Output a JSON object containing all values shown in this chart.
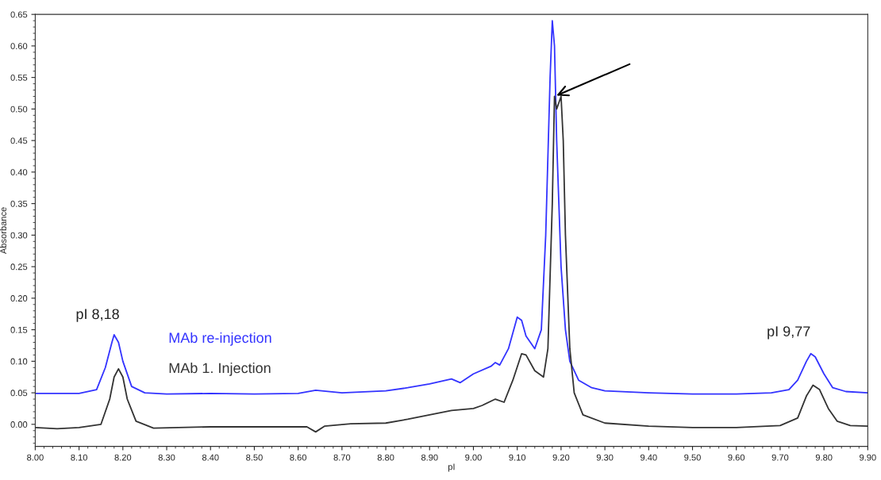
{
  "chart_data": {
    "type": "line",
    "xlabel": "pI",
    "ylabel": "Absorbance",
    "xlim": [
      8.0,
      9.9
    ],
    "ylim": [
      -0.035,
      0.65
    ],
    "xticks": [
      {
        "value": 8.0,
        "label": "8.00"
      },
      {
        "value": 8.1,
        "label": "8.10"
      },
      {
        "value": 8.2,
        "label": "8.20"
      },
      {
        "value": 8.3,
        "label": "8.30"
      },
      {
        "value": 8.4,
        "label": "8.40"
      },
      {
        "value": 8.5,
        "label": "8.50"
      },
      {
        "value": 8.6,
        "label": "8.60"
      },
      {
        "value": 8.7,
        "label": "8.70"
      },
      {
        "value": 8.8,
        "label": "8.80"
      },
      {
        "value": 8.9,
        "label": "8.90"
      },
      {
        "value": 9.0,
        "label": "9.00"
      },
      {
        "value": 9.1,
        "label": "9.10"
      },
      {
        "value": 9.2,
        "label": "9.20"
      },
      {
        "value": 9.3,
        "label": "9.30"
      },
      {
        "value": 9.4,
        "label": "9.40"
      },
      {
        "value": 9.5,
        "label": "9.50"
      },
      {
        "value": 9.6,
        "label": "9.60"
      },
      {
        "value": 9.7,
        "label": "9.70"
      },
      {
        "value": 9.8,
        "label": "9.80"
      },
      {
        "value": 9.9,
        "label": "9.90"
      }
    ],
    "yticks": [
      {
        "value": 0.0,
        "label": "0.00"
      },
      {
        "value": 0.05,
        "label": "0.05"
      },
      {
        "value": 0.1,
        "label": "0.10"
      },
      {
        "value": 0.15,
        "label": "0.15"
      },
      {
        "value": 0.2,
        "label": "0.20"
      },
      {
        "value": 0.25,
        "label": "0.25"
      },
      {
        "value": 0.3,
        "label": "0.30"
      },
      {
        "value": 0.35,
        "label": "0.35"
      },
      {
        "value": 0.4,
        "label": "0.40"
      },
      {
        "value": 0.45,
        "label": "0.45"
      },
      {
        "value": 0.5,
        "label": "0.50"
      },
      {
        "value": 0.55,
        "label": "0.55"
      },
      {
        "value": 0.6,
        "label": "0.60"
      },
      {
        "value": 0.65,
        "label": "0.65"
      }
    ],
    "grid": false,
    "legend": false,
    "marker": "none",
    "line_style": "solid",
    "annotations": [
      "pI 8,18",
      "pI 9,77"
    ],
    "series": [
      {
        "name": "MAb re-injection",
        "color": "#3333ff",
        "x": [
          8.0,
          8.1,
          8.14,
          8.16,
          8.175,
          8.18,
          8.19,
          8.2,
          8.22,
          8.25,
          8.3,
          8.4,
          8.5,
          8.6,
          8.64,
          8.7,
          8.8,
          8.85,
          8.9,
          8.95,
          8.97,
          9.0,
          9.04,
          9.05,
          9.06,
          9.08,
          9.1,
          9.11,
          9.12,
          9.14,
          9.155,
          9.165,
          9.175,
          9.18,
          9.185,
          9.19,
          9.2,
          9.21,
          9.22,
          9.24,
          9.27,
          9.3,
          9.4,
          9.5,
          9.6,
          9.68,
          9.72,
          9.74,
          9.76,
          9.77,
          9.78,
          9.8,
          9.82,
          9.85,
          9.9
        ],
        "values": [
          0.049,
          0.049,
          0.055,
          0.09,
          0.13,
          0.142,
          0.13,
          0.1,
          0.06,
          0.05,
          0.048,
          0.049,
          0.048,
          0.049,
          0.054,
          0.05,
          0.053,
          0.058,
          0.064,
          0.072,
          0.066,
          0.08,
          0.092,
          0.098,
          0.094,
          0.12,
          0.17,
          0.165,
          0.14,
          0.12,
          0.15,
          0.3,
          0.55,
          0.64,
          0.6,
          0.45,
          0.25,
          0.15,
          0.1,
          0.07,
          0.058,
          0.053,
          0.05,
          0.048,
          0.048,
          0.05,
          0.055,
          0.07,
          0.1,
          0.112,
          0.107,
          0.08,
          0.058,
          0.052,
          0.05
        ]
      },
      {
        "name": "MAb 1. Injection",
        "color": "#333333",
        "x": [
          8.0,
          8.05,
          8.1,
          8.15,
          8.17,
          8.18,
          8.19,
          8.2,
          8.21,
          8.23,
          8.27,
          8.4,
          8.55,
          8.62,
          8.64,
          8.66,
          8.72,
          8.8,
          8.85,
          8.9,
          8.95,
          9.0,
          9.02,
          9.05,
          9.07,
          9.09,
          9.11,
          9.12,
          9.14,
          9.16,
          9.17,
          9.18,
          9.185,
          9.19,
          9.195,
          9.2,
          9.205,
          9.21,
          9.22,
          9.23,
          9.25,
          9.3,
          9.4,
          9.5,
          9.6,
          9.7,
          9.74,
          9.76,
          9.775,
          9.79,
          9.81,
          9.83,
          9.86,
          9.9
        ],
        "values": [
          -0.005,
          -0.007,
          -0.005,
          0.0,
          0.04,
          0.075,
          0.088,
          0.075,
          0.04,
          0.005,
          -0.006,
          -0.004,
          -0.004,
          -0.004,
          -0.012,
          -0.003,
          0.001,
          0.002,
          0.008,
          0.015,
          0.022,
          0.025,
          0.03,
          0.04,
          0.035,
          0.07,
          0.112,
          0.11,
          0.085,
          0.075,
          0.12,
          0.35,
          0.52,
          0.5,
          0.51,
          0.52,
          0.45,
          0.3,
          0.12,
          0.05,
          0.015,
          0.002,
          -0.003,
          -0.005,
          -0.005,
          -0.002,
          0.01,
          0.045,
          0.062,
          0.055,
          0.025,
          0.005,
          -0.002,
          -0.003
        ]
      }
    ]
  }
}
